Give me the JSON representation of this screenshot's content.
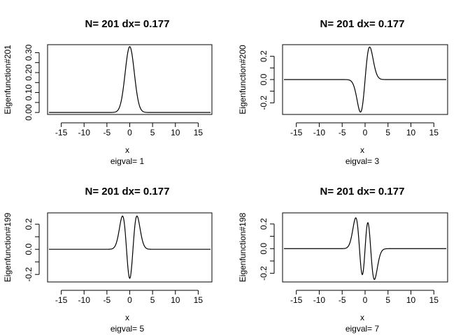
{
  "chart_data": [
    {
      "type": "line",
      "title": "N= 201 dx= 0.177",
      "xlabel": "x",
      "ylabel": "Eigenfunction#201",
      "sublabel": "eigval= 1",
      "xlim": [
        -18,
        18
      ],
      "ylim": [
        -0.01,
        0.34
      ],
      "xticks": [
        -15,
        -10,
        -5,
        0,
        5,
        10,
        15
      ],
      "yticks": [
        "0.00",
        "0.05",
        "0.10",
        "0.15",
        "0.20",
        "0.25",
        "0.30"
      ],
      "ytick_labels_shown": [
        "0.00",
        "0.10",
        "0.20",
        "0.30"
      ],
      "n": 0,
      "peak": 0.33,
      "x_range": [
        -17.7,
        17.7
      ]
    },
    {
      "type": "line",
      "title": "N= 201 dx= 0.177",
      "xlabel": "x",
      "ylabel": "Eigenfunction#200",
      "sublabel": "eigval= 3",
      "xlim": [
        -18,
        18
      ],
      "ylim": [
        -0.3,
        0.3
      ],
      "xticks": [
        -15,
        -10,
        -5,
        0,
        5,
        10,
        15
      ],
      "yticks": [
        "-0.2",
        "-0.1",
        "0.0",
        "0.1",
        "0.2"
      ],
      "ytick_labels_shown": [
        "-0.2",
        "0.0",
        "0.2"
      ],
      "n": 1,
      "peak": 0.28,
      "sign": 1,
      "x_range": [
        -17.7,
        17.7
      ]
    },
    {
      "type": "line",
      "title": "N= 201 dx= 0.177",
      "xlabel": "x",
      "ylabel": "Eigenfunction#199",
      "sublabel": "eigval= 5",
      "xlim": [
        -18,
        18
      ],
      "ylim": [
        -0.26,
        0.29
      ],
      "xticks": [
        -15,
        -10,
        -5,
        0,
        5,
        10,
        15
      ],
      "yticks": [
        "-0.2",
        "-0.1",
        "0.0",
        "0.1",
        "0.2"
      ],
      "ytick_labels_shown": [
        "-0.2",
        "0.0",
        "0.2"
      ],
      "n": 2,
      "peak": 0.265,
      "sign": 1,
      "x_range": [
        -17.7,
        17.7
      ]
    },
    {
      "type": "line",
      "title": "N= 201 dx= 0.177",
      "xlabel": "x",
      "ylabel": "Eigenfunction#198",
      "sublabel": "eigval= 7",
      "xlim": [
        -18,
        18
      ],
      "ylim": [
        -0.27,
        0.29
      ],
      "xticks": [
        -15,
        -10,
        -5,
        0,
        5,
        10,
        15
      ],
      "yticks": [
        "-0.2",
        "-0.1",
        "0.0",
        "0.1",
        "0.2"
      ],
      "ytick_labels_shown": [
        "-0.2",
        "0.0",
        "0.2"
      ],
      "n": 3,
      "peak": 0.25,
      "sign": -1,
      "x_range": [
        -17.7,
        17.7
      ]
    }
  ]
}
